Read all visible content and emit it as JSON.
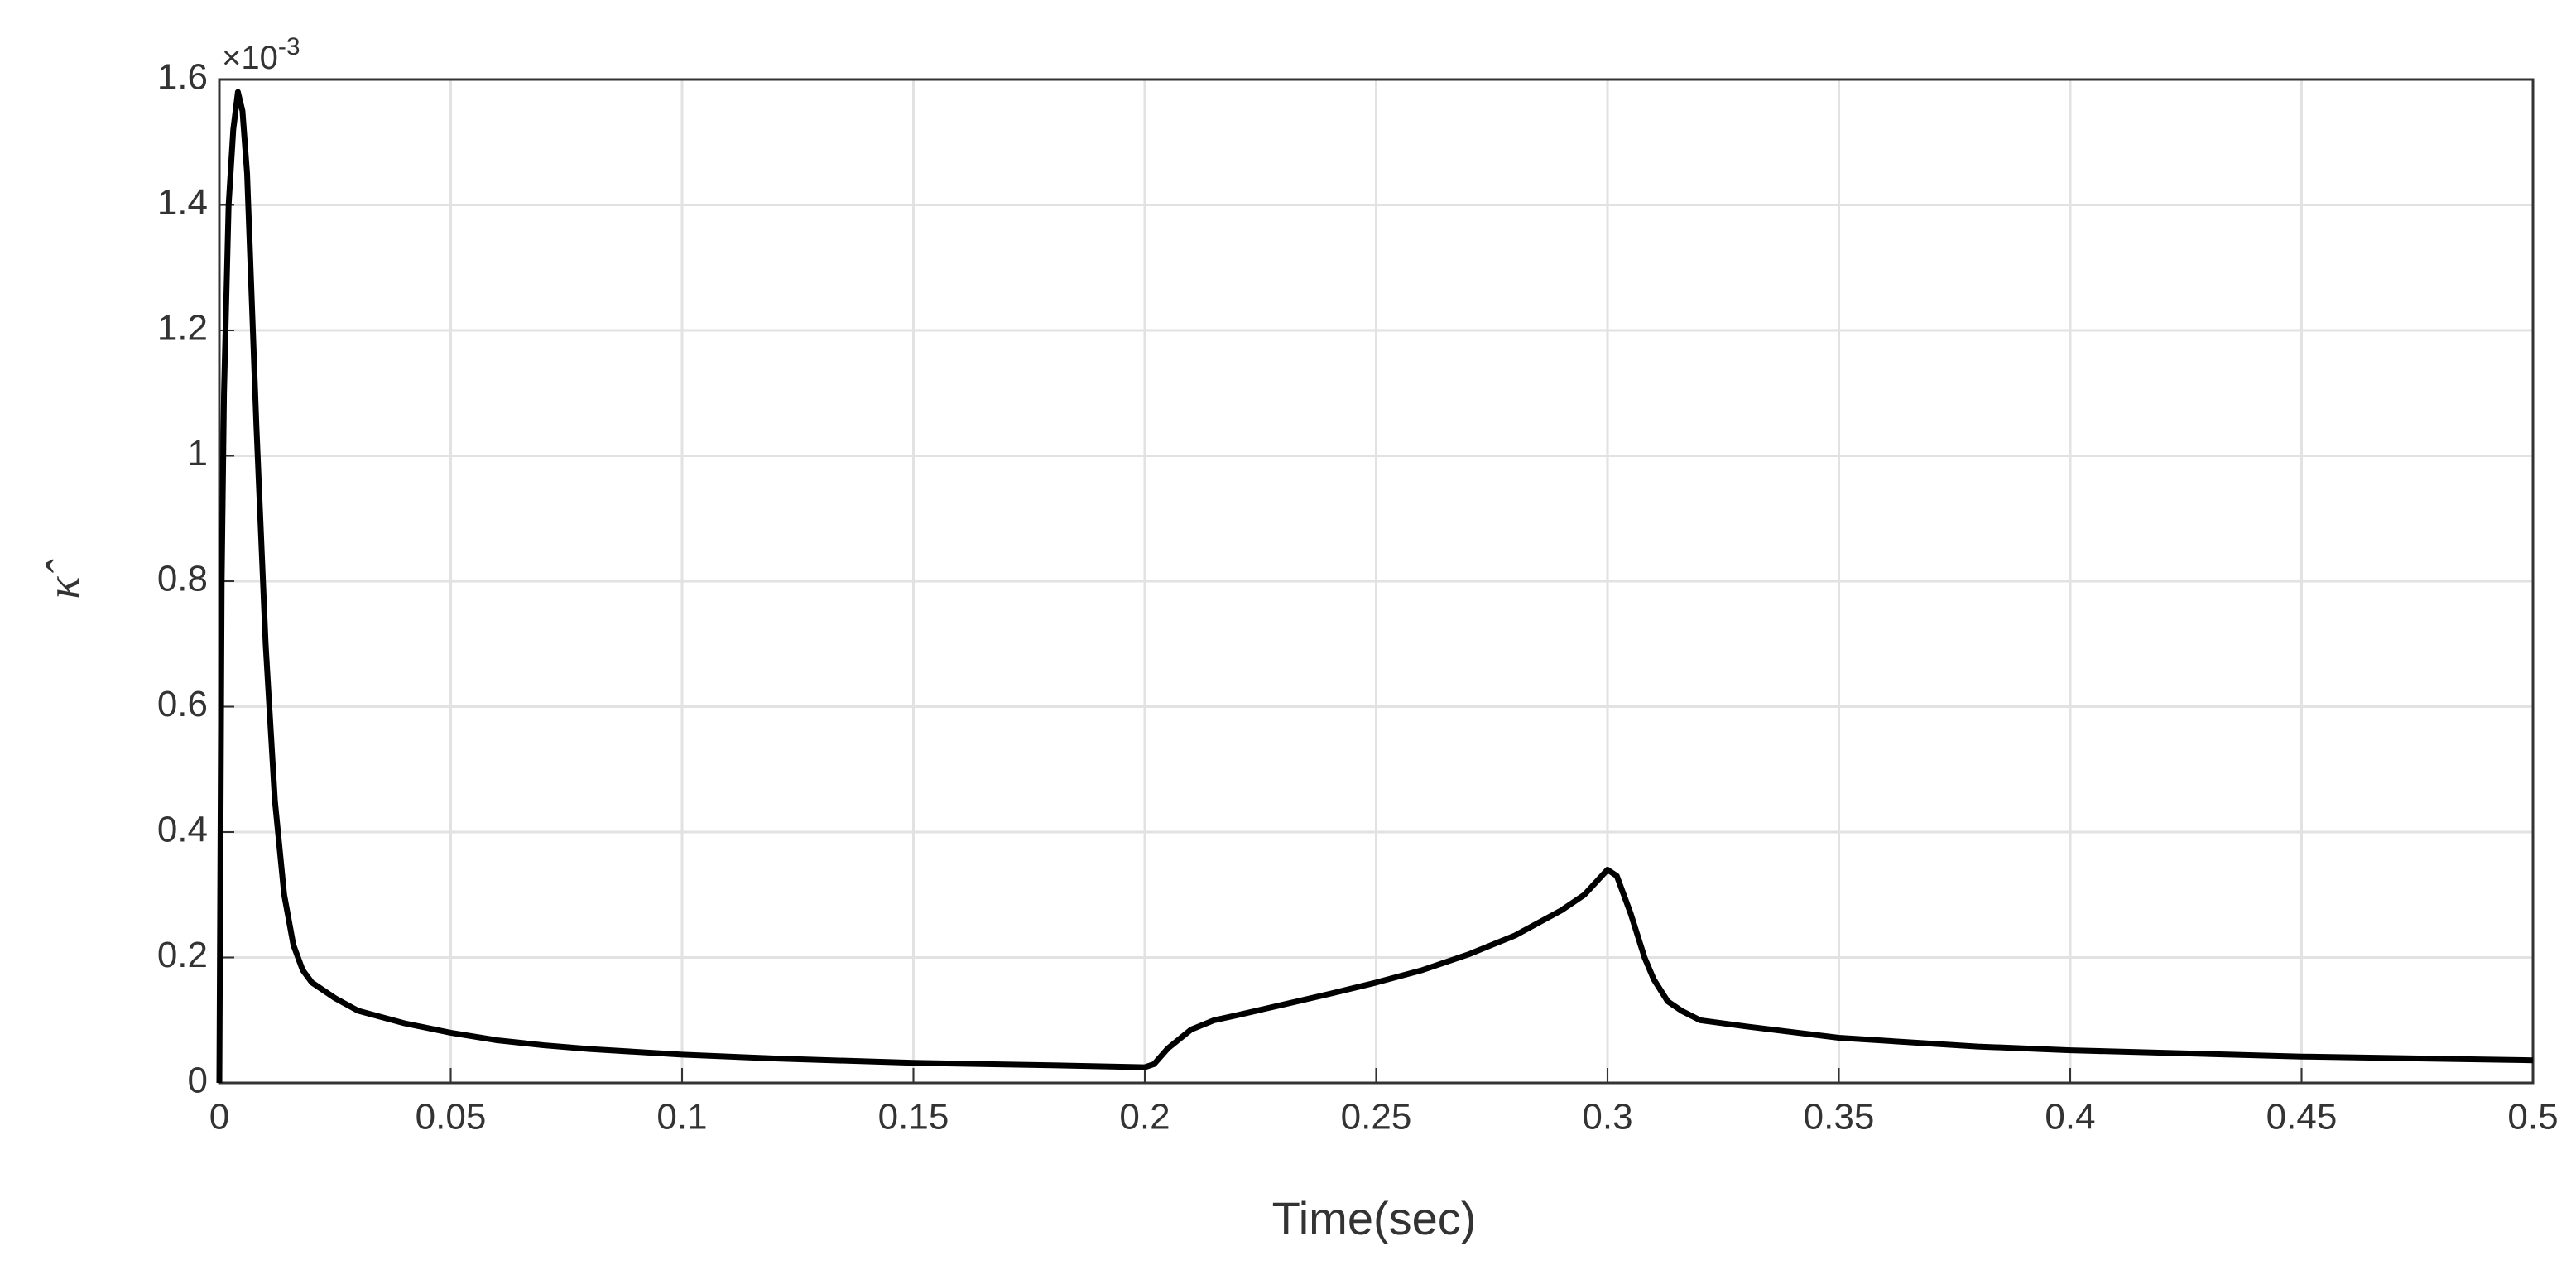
{
  "chart_data": {
    "type": "line",
    "x_label": "Time(sec)",
    "y_label": "κ̂",
    "y_multiplier": {
      "base": "×10",
      "exponent": "-3"
    },
    "x": [
      0,
      0.0005,
      0.001,
      0.002,
      0.003,
      0.004,
      0.005,
      0.006,
      0.007,
      0.008,
      0.01,
      0.012,
      0.014,
      0.016,
      0.018,
      0.02,
      0.025,
      0.03,
      0.04,
      0.05,
      0.06,
      0.07,
      0.08,
      0.1,
      0.12,
      0.15,
      0.18,
      0.2,
      0.202,
      0.205,
      0.21,
      0.215,
      0.22,
      0.23,
      0.24,
      0.25,
      0.26,
      0.27,
      0.28,
      0.29,
      0.295,
      0.3,
      0.302,
      0.305,
      0.308,
      0.31,
      0.313,
      0.316,
      0.32,
      0.33,
      0.35,
      0.38,
      0.4,
      0.45,
      0.5
    ],
    "series": [
      {
        "color": "#000000",
        "values": [
          0,
          0.8,
          1.1,
          1.4,
          1.52,
          1.58,
          1.55,
          1.45,
          1.25,
          1.05,
          0.7,
          0.45,
          0.3,
          0.22,
          0.18,
          0.16,
          0.135,
          0.115,
          0.095,
          0.08,
          0.068,
          0.06,
          0.054,
          0.045,
          0.039,
          0.032,
          0.028,
          0.025,
          0.03,
          0.055,
          0.085,
          0.1,
          0.108,
          0.125,
          0.142,
          0.16,
          0.18,
          0.205,
          0.235,
          0.275,
          0.3,
          0.34,
          0.33,
          0.27,
          0.2,
          0.165,
          0.13,
          0.115,
          0.1,
          0.09,
          0.072,
          0.058,
          0.052,
          0.042,
          0.036
        ]
      }
    ],
    "xlim": [
      0,
      0.5
    ],
    "xticks": [
      0,
      0.05,
      0.1,
      0.15,
      0.2,
      0.25,
      0.3,
      0.35,
      0.4,
      0.45,
      0.5
    ],
    "ylim": [
      0,
      1.6
    ],
    "yticks": [
      0,
      0.2,
      0.4,
      0.6,
      0.8,
      1,
      1.2,
      1.4,
      1.6
    ],
    "grid": true
  }
}
